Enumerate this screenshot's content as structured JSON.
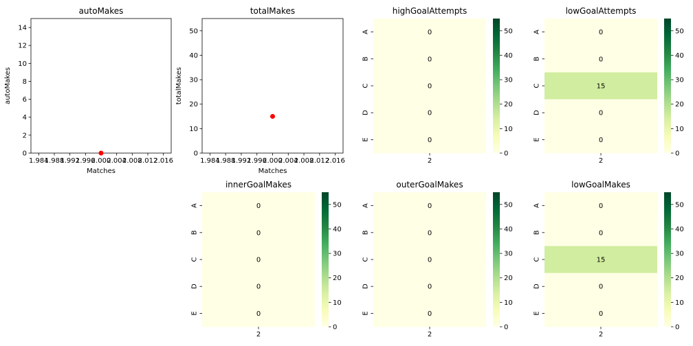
{
  "colors": {
    "scatter_point": "#ff0000",
    "cmap_low": "#ffffe5",
    "cmap_mid": "#d4ee9e",
    "cmap_high": "#004529"
  },
  "chart_data": [
    {
      "id": "autoMakes",
      "type": "scatter",
      "title": "autoMakes",
      "xlabel": "Matches",
      "ylabel": "autoMakes",
      "xlim": [
        1982,
        2018
      ],
      "ylim": [
        0,
        15
      ],
      "xticks": [
        "1.984",
        "1.988",
        "1.992",
        "1.996",
        "2.000",
        "2.004",
        "2.008",
        "2.012",
        "2.016"
      ],
      "yticks": [
        "0",
        "2",
        "4",
        "6",
        "8",
        "10",
        "12",
        "14"
      ],
      "points": [
        {
          "x": 2000,
          "y": 0
        }
      ]
    },
    {
      "id": "totalMakes",
      "type": "scatter",
      "title": "totalMakes",
      "xlabel": "Matches",
      "ylabel": "totalMakes",
      "xlim": [
        1982,
        2018
      ],
      "ylim": [
        0,
        55
      ],
      "xticks": [
        "1.984",
        "1.988",
        "1.992",
        "1.996",
        "2.000",
        "2.004",
        "2.008",
        "2.012",
        "2.016"
      ],
      "yticks": [
        "0",
        "10",
        "20",
        "30",
        "40",
        "50"
      ],
      "points": [
        {
          "x": 2000,
          "y": 15
        }
      ]
    },
    {
      "id": "highGoalAttempts",
      "type": "heatmap",
      "title": "highGoalAttempts",
      "rows": [
        "A",
        "B",
        "C",
        "D",
        "E"
      ],
      "columns": [
        "2"
      ],
      "values": [
        [
          0
        ],
        [
          0
        ],
        [
          0
        ],
        [
          0
        ],
        [
          0
        ]
      ],
      "vmin": 0,
      "vmax": 55,
      "colorbar_ticks": [
        "0",
        "10",
        "20",
        "30",
        "40",
        "50"
      ]
    },
    {
      "id": "lowGoalAttempts",
      "type": "heatmap",
      "title": "lowGoalAttempts",
      "rows": [
        "A",
        "B",
        "C",
        "D",
        "E"
      ],
      "columns": [
        "2"
      ],
      "values": [
        [
          0
        ],
        [
          0
        ],
        [
          15
        ],
        [
          0
        ],
        [
          0
        ]
      ],
      "vmin": 0,
      "vmax": 55,
      "colorbar_ticks": [
        "0",
        "10",
        "20",
        "30",
        "40",
        "50"
      ]
    },
    {
      "id": "innerGoalMakes",
      "type": "heatmap",
      "title": "innerGoalMakes",
      "rows": [
        "A",
        "B",
        "C",
        "D",
        "E"
      ],
      "columns": [
        "2"
      ],
      "values": [
        [
          0
        ],
        [
          0
        ],
        [
          0
        ],
        [
          0
        ],
        [
          0
        ]
      ],
      "vmin": 0,
      "vmax": 55,
      "colorbar_ticks": [
        "0",
        "10",
        "20",
        "30",
        "40",
        "50"
      ]
    },
    {
      "id": "outerGoalMakes",
      "type": "heatmap",
      "title": "outerGoalMakes",
      "rows": [
        "A",
        "B",
        "C",
        "D",
        "E"
      ],
      "columns": [
        "2"
      ],
      "values": [
        [
          0
        ],
        [
          0
        ],
        [
          0
        ],
        [
          0
        ],
        [
          0
        ]
      ],
      "vmin": 0,
      "vmax": 55,
      "colorbar_ticks": [
        "0",
        "10",
        "20",
        "30",
        "40",
        "50"
      ]
    },
    {
      "id": "lowGoalMakes",
      "type": "heatmap",
      "title": "lowGoalMakes",
      "rows": [
        "A",
        "B",
        "C",
        "D",
        "E"
      ],
      "columns": [
        "2"
      ],
      "values": [
        [
          0
        ],
        [
          0
        ],
        [
          15
        ],
        [
          0
        ],
        [
          0
        ]
      ],
      "vmin": 0,
      "vmax": 55,
      "colorbar_ticks": [
        "0",
        "10",
        "20",
        "30",
        "40",
        "50"
      ]
    }
  ]
}
